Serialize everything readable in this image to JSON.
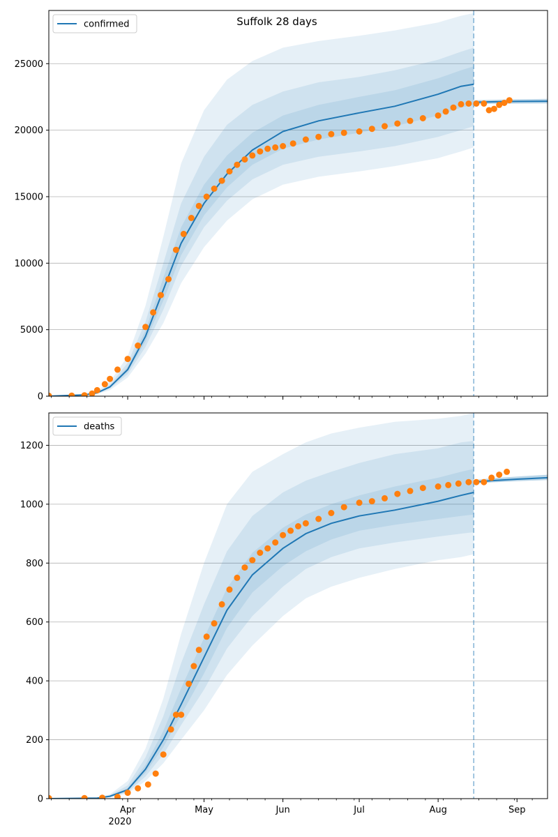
{
  "colors": {
    "model": "#1f77b4",
    "observed": "#ff7f0e",
    "band": "#1f77b4",
    "grid": "#b0b0b0",
    "cutoff": "#1f77b4"
  },
  "chart_data": [
    {
      "type": "line",
      "title": "Suffolk 28 days",
      "legend": {
        "label": "confirmed",
        "placement": "top-left"
      },
      "xlim": [
        "2020-03-01",
        "2020-09-13"
      ],
      "ylim": [
        0,
        29000
      ],
      "yticks": [
        0,
        5000,
        10000,
        15000,
        20000,
        25000
      ],
      "ytick_labels": [
        "0",
        "5000",
        "10000",
        "15000",
        "20000",
        "25000"
      ],
      "xticks": [
        "2020-04-01",
        "2020-05-01",
        "2020-06-01",
        "2020-07-01",
        "2020-08-01",
        "2020-09-01"
      ],
      "xtick_labels": [
        "Apr",
        "May",
        "Jun",
        "Jul",
        "Aug",
        "Sep"
      ],
      "show_xtick_labels": false,
      "grid": "y",
      "forecast_start": "2020-08-15",
      "model": {
        "name": "confirmed",
        "x": [
          "2020-03-01",
          "2020-03-15",
          "2020-03-20",
          "2020-03-25",
          "2020-04-01",
          "2020-04-08",
          "2020-04-15",
          "2020-04-22",
          "2020-05-01",
          "2020-05-10",
          "2020-05-20",
          "2020-06-01",
          "2020-06-15",
          "2020-07-01",
          "2020-07-15",
          "2020-08-01",
          "2020-08-10",
          "2020-08-15"
        ],
        "values": [
          0,
          100,
          250,
          700,
          2000,
          4500,
          8000,
          11500,
          14500,
          16700,
          18500,
          19900,
          20700,
          21300,
          21800,
          22700,
          23300,
          23450
        ]
      },
      "bands": [
        {
          "lower": [
            0,
            60,
            150,
            450,
            1400,
            3200,
            5500,
            8500,
            11200,
            13200,
            14800,
            15900,
            16500,
            16900,
            17300,
            17900,
            18400,
            18700
          ],
          "upper": [
            0,
            150,
            400,
            1100,
            3000,
            6800,
            12000,
            17500,
            21500,
            23800,
            25200,
            26200,
            26700,
            27100,
            27500,
            28100,
            28600,
            28800
          ]
        },
        {
          "lower": [
            0,
            75,
            190,
            560,
            1650,
            3700,
            6500,
            9800,
            12700,
            14700,
            16300,
            17400,
            18000,
            18400,
            18800,
            19500,
            20000,
            20300
          ],
          "upper": [
            0,
            125,
            320,
            880,
            2500,
            5600,
            10000,
            14500,
            18000,
            20400,
            21900,
            22900,
            23600,
            24000,
            24500,
            25300,
            25900,
            26200
          ]
        },
        {
          "lower": [
            0,
            85,
            215,
            630,
            1820,
            4100,
            7200,
            10600,
            13600,
            15700,
            17400,
            18600,
            19300,
            19800,
            20300,
            21100,
            21700,
            21900
          ],
          "upper": [
            0,
            115,
            285,
            780,
            2200,
            4950,
            8900,
            12700,
            15900,
            18100,
            19800,
            21100,
            21900,
            22500,
            23000,
            23900,
            24500,
            24800
          ]
        }
      ],
      "forecast": {
        "x": [
          "2020-08-15",
          "2020-08-22",
          "2020-09-01",
          "2020-09-13"
        ],
        "values": [
          22100,
          22130,
          22160,
          22180
        ],
        "lower": [
          21950,
          21980,
          22000,
          22010
        ],
        "upper": [
          22250,
          22280,
          22320,
          22350
        ]
      },
      "observed": {
        "name": "observed",
        "x": [
          "2020-03-01",
          "2020-03-10",
          "2020-03-15",
          "2020-03-18",
          "2020-03-20",
          "2020-03-23",
          "2020-03-25",
          "2020-03-28",
          "2020-04-01",
          "2020-04-05",
          "2020-04-08",
          "2020-04-11",
          "2020-04-14",
          "2020-04-17",
          "2020-04-20",
          "2020-04-23",
          "2020-04-26",
          "2020-04-29",
          "2020-05-02",
          "2020-05-05",
          "2020-05-08",
          "2020-05-11",
          "2020-05-14",
          "2020-05-17",
          "2020-05-20",
          "2020-05-23",
          "2020-05-26",
          "2020-05-29",
          "2020-06-01",
          "2020-06-05",
          "2020-06-10",
          "2020-06-15",
          "2020-06-20",
          "2020-06-25",
          "2020-07-01",
          "2020-07-06",
          "2020-07-11",
          "2020-07-16",
          "2020-07-21",
          "2020-07-26",
          "2020-08-01",
          "2020-08-04",
          "2020-08-07",
          "2020-08-10",
          "2020-08-13",
          "2020-08-16",
          "2020-08-19",
          "2020-08-21",
          "2020-08-23",
          "2020-08-25",
          "2020-08-27",
          "2020-08-29"
        ],
        "values": [
          30,
          40,
          70,
          200,
          450,
          900,
          1300,
          2000,
          2800,
          3800,
          5200,
          6300,
          7600,
          8800,
          11000,
          12200,
          13400,
          14300,
          15000,
          15600,
          16200,
          16900,
          17400,
          17800,
          18100,
          18400,
          18600,
          18700,
          18800,
          19000,
          19300,
          19500,
          19700,
          19800,
          19900,
          20100,
          20300,
          20500,
          20700,
          20900,
          21100,
          21400,
          21700,
          21950,
          22000,
          22000,
          22000,
          21500,
          21600,
          21900,
          22050,
          22250
        ]
      }
    },
    {
      "type": "line",
      "title": "",
      "legend": {
        "label": "deaths",
        "placement": "top-left"
      },
      "xlim": [
        "2020-03-01",
        "2020-09-13"
      ],
      "ylim": [
        0,
        1310
      ],
      "yticks": [
        0,
        200,
        400,
        600,
        800,
        1000,
        1200
      ],
      "ytick_labels": [
        "0",
        "200",
        "400",
        "600",
        "800",
        "1000",
        "1200"
      ],
      "xticks": [
        "2020-04-01",
        "2020-05-01",
        "2020-06-01",
        "2020-07-01",
        "2020-08-01",
        "2020-09-01"
      ],
      "xtick_labels": [
        "Apr",
        "May",
        "Jun",
        "Jul",
        "Aug",
        "Sep"
      ],
      "xtick_sublabel": "2020",
      "show_xtick_labels": true,
      "grid": "y",
      "forecast_start": "2020-08-15",
      "model": {
        "name": "deaths",
        "x": [
          "2020-03-01",
          "2020-03-20",
          "2020-03-25",
          "2020-04-01",
          "2020-04-08",
          "2020-04-15",
          "2020-04-22",
          "2020-05-01",
          "2020-05-10",
          "2020-05-20",
          "2020-06-01",
          "2020-06-10",
          "2020-06-20",
          "2020-07-01",
          "2020-07-15",
          "2020-08-01",
          "2020-08-10",
          "2020-08-15"
        ],
        "values": [
          0,
          2,
          8,
          30,
          100,
          200,
          320,
          480,
          640,
          760,
          850,
          900,
          935,
          960,
          980,
          1010,
          1030,
          1040
        ]
      },
      "bands": [
        {
          "lower": [
            0,
            1,
            4,
            18,
            60,
            120,
            200,
            300,
            420,
            520,
            620,
            680,
            720,
            750,
            780,
            810,
            820,
            830
          ],
          "upper": [
            0,
            4,
            15,
            60,
            170,
            340,
            560,
            800,
            1000,
            1110,
            1170,
            1210,
            1240,
            1260,
            1280,
            1290,
            1300,
            1310
          ]
        },
        {
          "lower": [
            0,
            1,
            5,
            22,
            75,
            150,
            250,
            370,
            510,
            620,
            720,
            780,
            820,
            850,
            870,
            890,
            900,
            905
          ],
          "upper": [
            0,
            3,
            12,
            45,
            140,
            280,
            460,
            660,
            840,
            960,
            1040,
            1080,
            1110,
            1140,
            1170,
            1190,
            1210,
            1215
          ]
        },
        {
          "lower": [
            0,
            2,
            6,
            26,
            88,
            175,
            285,
            425,
            580,
            700,
            790,
            840,
            880,
            910,
            930,
            950,
            960,
            965
          ],
          "upper": [
            0,
            2,
            10,
            36,
            115,
            230,
            375,
            545,
            715,
            835,
            920,
            965,
            1000,
            1030,
            1060,
            1090,
            1110,
            1120
          ]
        }
      ],
      "forecast": {
        "x": [
          "2020-08-15",
          "2020-08-22",
          "2020-09-01",
          "2020-09-13"
        ],
        "values": [
          1075,
          1080,
          1085,
          1090
        ],
        "lower": [
          1070,
          1074,
          1078,
          1082
        ],
        "upper": [
          1082,
          1088,
          1094,
          1100
        ]
      },
      "observed": {
        "name": "observed",
        "x": [
          "2020-03-01",
          "2020-03-15",
          "2020-03-22",
          "2020-03-28",
          "2020-04-01",
          "2020-04-05",
          "2020-04-09",
          "2020-04-12",
          "2020-04-15",
          "2020-04-18",
          "2020-04-20",
          "2020-04-22",
          "2020-04-25",
          "2020-04-27",
          "2020-04-29",
          "2020-05-02",
          "2020-05-05",
          "2020-05-08",
          "2020-05-11",
          "2020-05-14",
          "2020-05-17",
          "2020-05-20",
          "2020-05-23",
          "2020-05-26",
          "2020-05-29",
          "2020-06-01",
          "2020-06-04",
          "2020-06-07",
          "2020-06-10",
          "2020-06-15",
          "2020-06-20",
          "2020-06-25",
          "2020-07-01",
          "2020-07-06",
          "2020-07-11",
          "2020-07-16",
          "2020-07-21",
          "2020-07-26",
          "2020-08-01",
          "2020-08-05",
          "2020-08-09",
          "2020-08-13",
          "2020-08-16",
          "2020-08-19",
          "2020-08-22",
          "2020-08-25",
          "2020-08-28"
        ],
        "values": [
          2,
          2,
          3,
          6,
          20,
          35,
          48,
          85,
          150,
          235,
          285,
          285,
          390,
          450,
          505,
          550,
          595,
          660,
          710,
          750,
          785,
          810,
          835,
          850,
          870,
          895,
          910,
          925,
          935,
          950,
          970,
          990,
          1005,
          1010,
          1020,
          1035,
          1045,
          1055,
          1060,
          1065,
          1070,
          1075,
          1075,
          1075,
          1090,
          1100,
          1110
        ]
      }
    }
  ]
}
